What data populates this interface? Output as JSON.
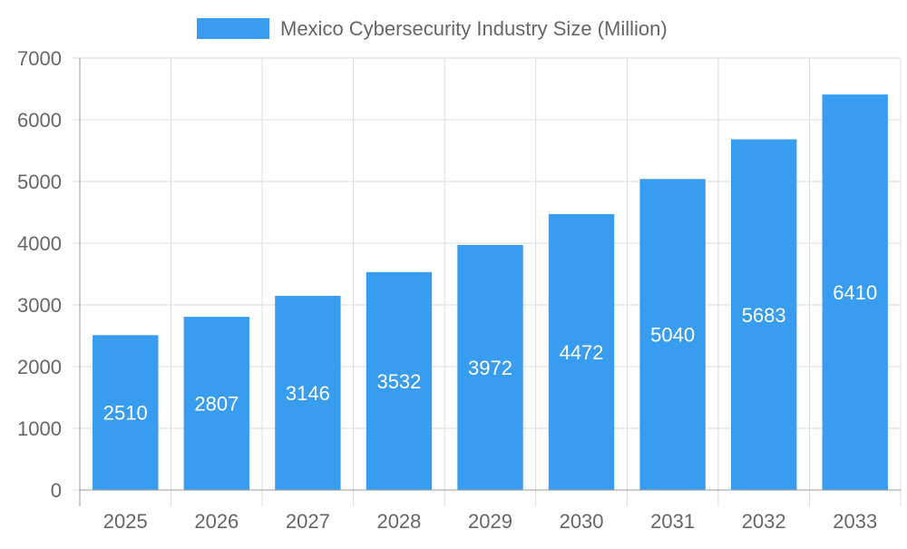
{
  "chart_data": {
    "type": "bar",
    "title": "",
    "xlabel": "",
    "ylabel": "",
    "legend": {
      "position": "top",
      "entries": [
        "Mexico Cybersecurity Industry Size (Million)"
      ]
    },
    "categories": [
      "2025",
      "2026",
      "2027",
      "2028",
      "2029",
      "2030",
      "2031",
      "2032",
      "2033"
    ],
    "series": [
      {
        "name": "Mexico Cybersecurity Industry Size (Million)",
        "values": [
          2510,
          2807,
          3146,
          3532,
          3972,
          4472,
          5040,
          5683,
          6410
        ],
        "color": "#389cf0"
      }
    ],
    "ylim": [
      0,
      7000
    ],
    "yticks": [
      0,
      1000,
      2000,
      3000,
      4000,
      5000,
      6000,
      7000
    ],
    "grid": true,
    "data_labels": true
  }
}
